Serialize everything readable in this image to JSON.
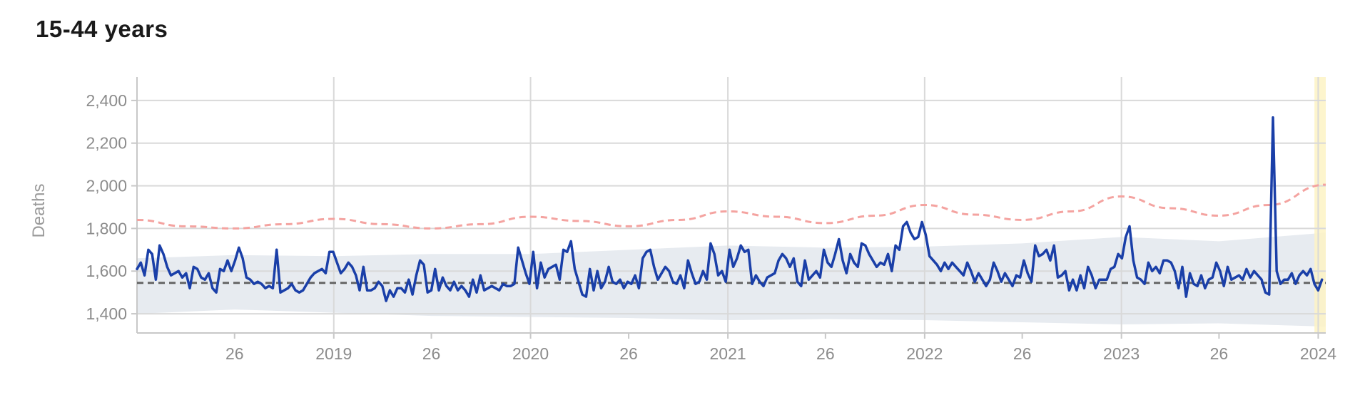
{
  "title": "15-44 years",
  "chart_data": {
    "type": "line",
    "title": "15-44 years",
    "ylabel": "Deaths",
    "xlabel": "",
    "x_range": [
      "2018-01-01",
      "2024-01-15"
    ],
    "ylim": [
      1310,
      2510
    ],
    "y_ticks": [
      1400,
      1600,
      1800,
      2000,
      2200,
      2400
    ],
    "y_tick_labels": [
      "1,400",
      "1,600",
      "1,800",
      "2,000",
      "2,200",
      "2,400"
    ],
    "x_ticks": [
      {
        "date": "2018-07-01",
        "label": "26"
      },
      {
        "date": "2019-01-01",
        "label": "2019"
      },
      {
        "date": "2019-07-01",
        "label": "26"
      },
      {
        "date": "2020-01-01",
        "label": "2020"
      },
      {
        "date": "2020-07-01",
        "label": "26"
      },
      {
        "date": "2021-01-01",
        "label": "2021"
      },
      {
        "date": "2021-07-01",
        "label": "26"
      },
      {
        "date": "2022-01-01",
        "label": "2022"
      },
      {
        "date": "2022-07-01",
        "label": "26"
      },
      {
        "date": "2023-01-01",
        "label": "2023"
      },
      {
        "date": "2023-07-01",
        "label": "26"
      },
      {
        "date": "2024-01-01",
        "label": "2024"
      }
    ],
    "grid": true,
    "highlight": {
      "from": "2023-12-25",
      "to": "2024-01-15",
      "color": "#fdf3c4"
    },
    "colors": {
      "deaths": "#1a3fa8",
      "expected": "#666666",
      "upper": "#f4a3a0",
      "band": "#e7ebf0"
    },
    "series": [
      {
        "role": "deaths",
        "x": [
          "2018-01-01",
          "2018-01-08",
          "2018-01-15",
          "2018-01-22",
          "2018-01-29",
          "2018-02-05",
          "2018-02-12",
          "2018-02-19",
          "2018-02-26",
          "2018-03-05",
          "2018-03-12",
          "2018-03-19",
          "2018-03-26",
          "2018-04-02",
          "2018-04-09",
          "2018-04-16",
          "2018-04-23",
          "2018-04-30",
          "2018-05-07",
          "2018-05-14",
          "2018-05-21",
          "2018-05-28",
          "2018-06-04",
          "2018-06-11",
          "2018-06-18",
          "2018-06-25",
          "2018-07-02",
          "2018-07-09",
          "2018-07-16",
          "2018-07-23",
          "2018-07-30",
          "2018-08-06",
          "2018-08-13",
          "2018-08-20",
          "2018-08-27",
          "2018-09-03",
          "2018-09-10",
          "2018-09-17",
          "2018-09-24",
          "2018-10-01",
          "2018-10-08",
          "2018-10-15",
          "2018-10-22",
          "2018-10-29",
          "2018-11-05",
          "2018-11-12",
          "2018-11-19",
          "2018-11-26",
          "2018-12-03",
          "2018-12-10",
          "2018-12-17",
          "2018-12-24",
          "2018-12-31",
          "2019-01-07",
          "2019-01-14",
          "2019-01-21",
          "2019-01-28",
          "2019-02-04",
          "2019-02-11",
          "2019-02-18",
          "2019-02-25",
          "2019-03-04",
          "2019-03-11",
          "2019-03-18",
          "2019-03-25",
          "2019-04-01",
          "2019-04-08",
          "2019-04-15",
          "2019-04-22",
          "2019-04-29",
          "2019-05-06",
          "2019-05-13",
          "2019-05-20",
          "2019-05-27",
          "2019-06-03",
          "2019-06-10",
          "2019-06-17",
          "2019-06-24",
          "2019-07-01",
          "2019-07-08",
          "2019-07-15",
          "2019-07-22",
          "2019-07-29",
          "2019-08-05",
          "2019-08-12",
          "2019-08-19",
          "2019-08-26",
          "2019-09-02",
          "2019-09-09",
          "2019-09-16",
          "2019-09-23",
          "2019-09-30",
          "2019-10-07",
          "2019-10-14",
          "2019-10-21",
          "2019-10-28",
          "2019-11-04",
          "2019-11-11",
          "2019-11-18",
          "2019-11-25",
          "2019-12-02",
          "2019-12-09",
          "2019-12-16",
          "2019-12-23",
          "2019-12-30",
          "2020-01-06",
          "2020-01-13",
          "2020-01-20",
          "2020-01-27",
          "2020-02-03",
          "2020-02-10",
          "2020-02-17",
          "2020-02-24",
          "2020-03-02",
          "2020-03-09",
          "2020-03-16",
          "2020-03-23",
          "2020-03-30",
          "2020-04-06",
          "2020-04-13",
          "2020-04-20",
          "2020-04-27",
          "2020-05-04",
          "2020-05-11",
          "2020-05-18",
          "2020-05-25",
          "2020-06-01",
          "2020-06-08",
          "2020-06-15",
          "2020-06-22",
          "2020-06-29",
          "2020-07-06",
          "2020-07-13",
          "2020-07-20",
          "2020-07-27",
          "2020-08-03",
          "2020-08-10",
          "2020-08-17",
          "2020-08-24",
          "2020-08-31",
          "2020-09-07",
          "2020-09-14",
          "2020-09-21",
          "2020-09-28",
          "2020-10-05",
          "2020-10-12",
          "2020-10-19",
          "2020-10-26",
          "2020-11-02",
          "2020-11-09",
          "2020-11-16",
          "2020-11-23",
          "2020-11-30",
          "2020-12-07",
          "2020-12-14",
          "2020-12-21",
          "2020-12-28",
          "2021-01-04",
          "2021-01-11",
          "2021-01-18",
          "2021-01-25",
          "2021-02-01",
          "2021-02-08",
          "2021-02-15",
          "2021-02-22",
          "2021-03-01",
          "2021-03-08",
          "2021-03-15",
          "2021-03-22",
          "2021-03-29",
          "2021-04-05",
          "2021-04-12",
          "2021-04-19",
          "2021-04-26",
          "2021-05-03",
          "2021-05-10",
          "2021-05-17",
          "2021-05-24",
          "2021-05-31",
          "2021-06-07",
          "2021-06-14",
          "2021-06-21",
          "2021-06-28",
          "2021-07-05",
          "2021-07-12",
          "2021-07-19",
          "2021-07-26",
          "2021-08-02",
          "2021-08-09",
          "2021-08-16",
          "2021-08-23",
          "2021-08-30",
          "2021-09-06",
          "2021-09-13",
          "2021-09-20",
          "2021-09-27",
          "2021-10-04",
          "2021-10-11",
          "2021-10-18",
          "2021-10-25",
          "2021-11-01",
          "2021-11-08",
          "2021-11-15",
          "2021-11-22",
          "2021-11-29",
          "2021-12-06",
          "2021-12-13",
          "2021-12-20",
          "2021-12-27",
          "2022-01-03",
          "2022-01-10",
          "2022-01-17",
          "2022-01-24",
          "2022-01-31",
          "2022-02-07",
          "2022-02-14",
          "2022-02-21",
          "2022-02-28",
          "2022-03-07",
          "2022-03-14",
          "2022-03-21",
          "2022-03-28",
          "2022-04-04",
          "2022-04-11",
          "2022-04-18",
          "2022-04-25",
          "2022-05-02",
          "2022-05-09",
          "2022-05-16",
          "2022-05-23",
          "2022-05-30",
          "2022-06-06",
          "2022-06-13",
          "2022-06-20",
          "2022-06-27",
          "2022-07-04",
          "2022-07-11",
          "2022-07-18",
          "2022-07-25",
          "2022-08-01",
          "2022-08-08",
          "2022-08-15",
          "2022-08-22",
          "2022-08-29",
          "2022-09-05",
          "2022-09-12",
          "2022-09-19",
          "2022-09-26",
          "2022-10-03",
          "2022-10-10",
          "2022-10-17",
          "2022-10-24",
          "2022-10-31",
          "2022-11-07",
          "2022-11-14",
          "2022-11-21",
          "2022-11-28",
          "2022-12-05",
          "2022-12-12",
          "2022-12-19",
          "2022-12-26",
          "2023-01-02",
          "2023-01-09",
          "2023-01-16",
          "2023-01-23",
          "2023-01-30",
          "2023-02-06",
          "2023-02-13",
          "2023-02-20",
          "2023-02-27",
          "2023-03-06",
          "2023-03-13",
          "2023-03-20",
          "2023-03-27",
          "2023-04-03",
          "2023-04-10",
          "2023-04-17",
          "2023-04-24",
          "2023-05-01",
          "2023-05-08",
          "2023-05-15",
          "2023-05-22",
          "2023-05-29",
          "2023-06-05",
          "2023-06-12",
          "2023-06-19",
          "2023-06-26",
          "2023-07-03",
          "2023-07-10",
          "2023-07-17",
          "2023-07-24",
          "2023-07-31",
          "2023-08-07",
          "2023-08-14",
          "2023-08-21",
          "2023-08-28",
          "2023-09-04",
          "2023-09-11",
          "2023-09-18",
          "2023-09-25",
          "2023-10-02",
          "2023-10-09",
          "2023-10-16",
          "2023-10-23",
          "2023-10-30",
          "2023-11-06",
          "2023-11-13",
          "2023-11-20",
          "2023-11-27",
          "2023-12-04",
          "2023-12-11",
          "2023-12-18",
          "2023-12-25",
          "2024-01-01",
          "2024-01-08"
        ],
        "values": [
          1610,
          1640,
          1580,
          1700,
          1680,
          1560,
          1720,
          1680,
          1620,
          1580,
          1590,
          1600,
          1570,
          1590,
          1520,
          1620,
          1610,
          1570,
          1560,
          1590,
          1520,
          1500,
          1610,
          1600,
          1650,
          1600,
          1650,
          1710,
          1660,
          1570,
          1560,
          1540,
          1550,
          1540,
          1520,
          1530,
          1520,
          1700,
          1500,
          1510,
          1520,
          1540,
          1510,
          1500,
          1510,
          1540,
          1570,
          1590,
          1600,
          1610,
          1590,
          1690,
          1690,
          1640,
          1590,
          1610,
          1640,
          1620,
          1580,
          1510,
          1620,
          1510,
          1510,
          1520,
          1550,
          1530,
          1460,
          1510,
          1480,
          1520,
          1520,
          1500,
          1560,
          1490,
          1580,
          1650,
          1630,
          1500,
          1510,
          1610,
          1510,
          1570,
          1530,
          1510,
          1550,
          1510,
          1530,
          1510,
          1480,
          1560,
          1500,
          1580,
          1510,
          1520,
          1530,
          1520,
          1510,
          1540,
          1530,
          1530,
          1540,
          1710,
          1650,
          1590,
          1540,
          1690,
          1520,
          1640,
          1570,
          1610,
          1620,
          1630,
          1560,
          1700,
          1690,
          1740,
          1610,
          1550,
          1490,
          1480,
          1610,
          1510,
          1600,
          1520,
          1550,
          1620,
          1550,
          1540,
          1560,
          1520,
          1550,
          1540,
          1580,
          1520,
          1660,
          1690,
          1700,
          1620,
          1560,
          1590,
          1620,
          1600,
          1550,
          1540,
          1580,
          1520,
          1650,
          1590,
          1540,
          1550,
          1600,
          1560,
          1730,
          1680,
          1580,
          1600,
          1550,
          1700,
          1620,
          1660,
          1720,
          1690,
          1700,
          1540,
          1580,
          1550,
          1530,
          1570,
          1580,
          1590,
          1650,
          1680,
          1660,
          1620,
          1660,
          1550,
          1530,
          1650,
          1560,
          1580,
          1600,
          1570,
          1700,
          1640,
          1620,
          1680,
          1750,
          1650,
          1590,
          1680,
          1640,
          1620,
          1730,
          1720,
          1680,
          1650,
          1620,
          1640,
          1630,
          1680,
          1600,
          1720,
          1700,
          1810,
          1830,
          1780,
          1750,
          1760,
          1830,
          1770,
          1670,
          1650,
          1630,
          1600,
          1640,
          1610,
          1640,
          1620,
          1600,
          1580,
          1640,
          1600,
          1550,
          1590,
          1560,
          1530,
          1560,
          1640,
          1600,
          1550,
          1590,
          1560,
          1530,
          1580,
          1570,
          1650,
          1590,
          1550,
          1720,
          1670,
          1680,
          1700,
          1650,
          1720,
          1570,
          1580,
          1600,
          1510,
          1560,
          1510,
          1580,
          1520,
          1620,
          1580,
          1520,
          1560,
          1560,
          1560,
          1610,
          1620,
          1680,
          1660,
          1760,
          1810,
          1650,
          1570,
          1560,
          1540,
          1640,
          1600,
          1620,
          1590,
          1650,
          1650,
          1640,
          1600,
          1520,
          1620,
          1480,
          1590,
          1540,
          1530,
          1580,
          1520,
          1560,
          1570,
          1640,
          1600,
          1530,
          1620,
          1560,
          1570,
          1580,
          1560,
          1610,
          1570,
          1600,
          1580,
          1560,
          1500,
          1490,
          2320,
          1600,
          1540,
          1560,
          1560,
          1590,
          1540,
          1580,
          1600,
          1580,
          1610,
          1540,
          1510,
          1560
        ],
        "peak_spike_date": "2023-10-09"
      },
      {
        "role": "expected",
        "x": [
          "2018-01-01",
          "2024-01-15"
        ],
        "values": [
          1545,
          1545
        ]
      },
      {
        "role": "upper",
        "x": [
          "2018-01-01",
          "2018-04-01",
          "2018-07-01",
          "2018-10-01",
          "2019-01-01",
          "2019-04-01",
          "2019-07-01",
          "2019-10-01",
          "2020-01-01",
          "2020-04-01",
          "2020-07-01",
          "2020-10-01",
          "2021-01-01",
          "2021-04-01",
          "2021-07-01",
          "2021-10-01",
          "2022-01-01",
          "2022-04-01",
          "2022-07-01",
          "2022-10-01",
          "2023-01-01",
          "2023-04-01",
          "2023-07-01",
          "2023-10-01",
          "2024-01-15"
        ],
        "values": [
          1840,
          1810,
          1800,
          1820,
          1845,
          1820,
          1800,
          1820,
          1855,
          1835,
          1810,
          1840,
          1880,
          1855,
          1825,
          1860,
          1910,
          1865,
          1840,
          1880,
          1950,
          1895,
          1860,
          1910,
          2005
        ]
      },
      {
        "role": "band",
        "x": [
          "2018-01-01",
          "2018-07-01",
          "2019-01-01",
          "2019-07-01",
          "2020-01-01",
          "2020-07-01",
          "2021-01-01",
          "2021-07-01",
          "2022-01-01",
          "2022-07-01",
          "2023-01-01",
          "2023-07-01",
          "2024-01-15"
        ],
        "upper": [
          1660,
          1675,
          1670,
          1680,
          1680,
          1700,
          1720,
          1710,
          1715,
          1730,
          1760,
          1740,
          1780
        ],
        "lower": [
          1400,
          1420,
          1405,
          1390,
          1385,
          1380,
          1370,
          1375,
          1370,
          1360,
          1350,
          1355,
          1340
        ]
      }
    ]
  }
}
